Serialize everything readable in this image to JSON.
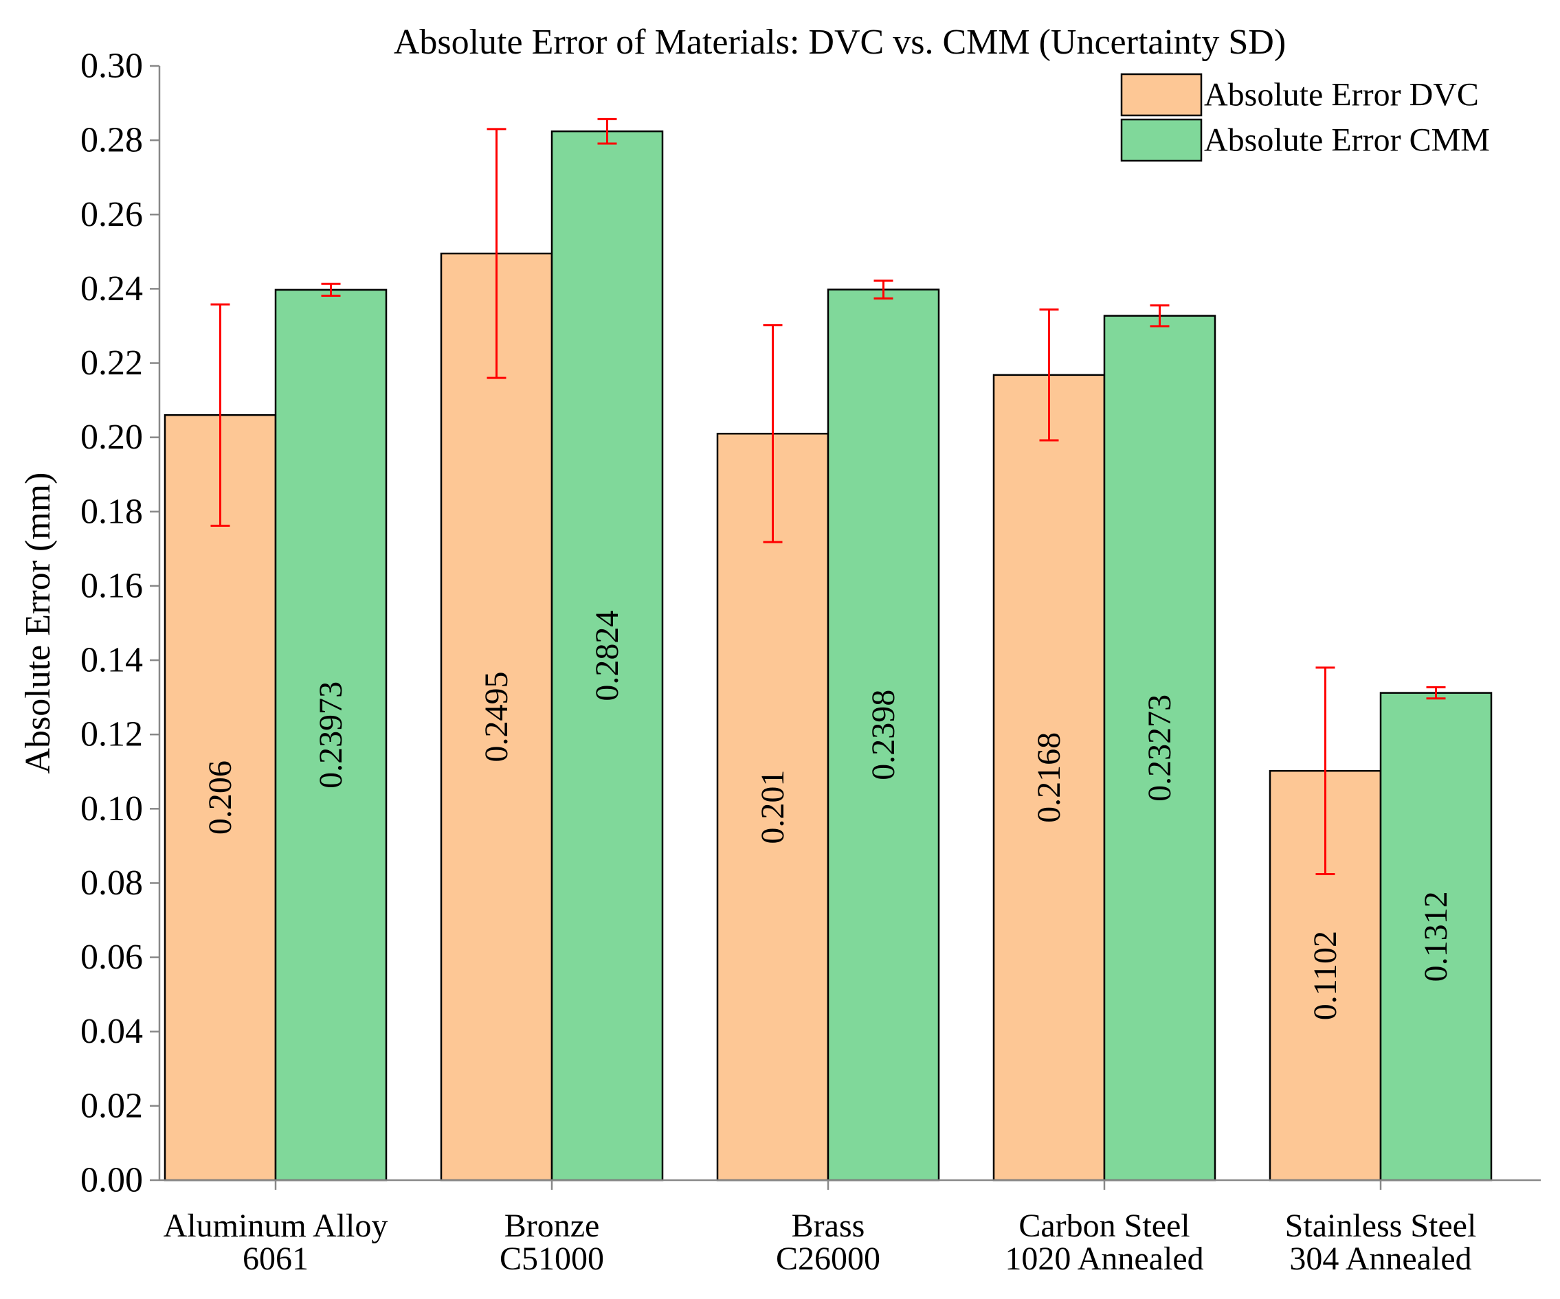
{
  "chart_data": {
    "type": "bar",
    "title": "Absolute Error of Materials: DVC vs. CMM (Uncertainty SD)",
    "xlabel": "",
    "ylabel": "Absolute Error (mm)",
    "ylim": [
      0,
      0.3
    ],
    "yticks": [
      "0.00",
      "0.02",
      "0.04",
      "0.06",
      "0.08",
      "0.10",
      "0.12",
      "0.14",
      "0.16",
      "0.18",
      "0.20",
      "0.22",
      "0.24",
      "0.26",
      "0.28",
      "0.30"
    ],
    "categories": [
      [
        "Aluminum Alloy",
        "6061"
      ],
      [
        "Bronze",
        "C51000"
      ],
      [
        "Brass",
        "C26000"
      ],
      [
        "Carbon Steel",
        "1020 Annealed"
      ],
      [
        "Stainless Steel",
        "304 Annealed"
      ]
    ],
    "series": [
      {
        "name": "Absolute Error DVC",
        "color": "#FDC795",
        "values": [
          0.206,
          0.2495,
          0.201,
          0.2168,
          0.1102
        ],
        "labels": [
          "0.206",
          "0.2495",
          "0.201",
          "0.2168",
          "0.1102"
        ],
        "error": [
          0.0298,
          0.0335,
          0.0292,
          0.0176,
          0.0278
        ]
      },
      {
        "name": "Absolute Error CMM",
        "color": "#80D89A",
        "values": [
          0.23973,
          0.2824,
          0.2398,
          0.23273,
          0.1312
        ],
        "labels": [
          "0.23973",
          "0.2824",
          "0.2398",
          "0.23273",
          "0.1312"
        ],
        "error": [
          0.0016,
          0.0033,
          0.0024,
          0.0028,
          0.0015
        ]
      }
    ],
    "error_bar_color": "#FF0000",
    "grid": false,
    "legend_position": "top-right"
  }
}
